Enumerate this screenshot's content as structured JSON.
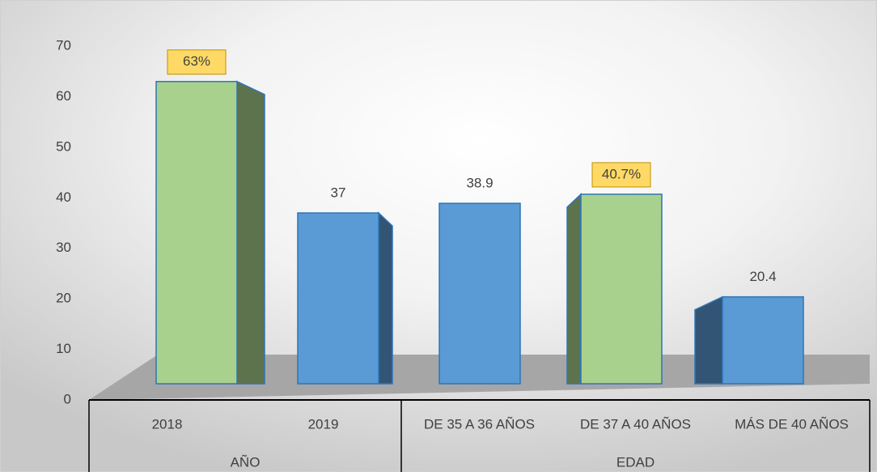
{
  "chart_data": {
    "type": "bar3d",
    "categories": [
      "2018",
      "2019",
      "DE 35 A 36 AÑOS",
      "DE 37 A 40 AÑOS",
      "MÁS DE 40 AÑOS"
    ],
    "groups": [
      {
        "name": "AÑO",
        "size": 2
      },
      {
        "name": "EDAD",
        "size": 3
      }
    ],
    "values": [
      63,
      37,
      38.9,
      40.7,
      20.4
    ],
    "value_labels": [
      "63%",
      "37",
      "38.9",
      "40.7%",
      "20.4"
    ],
    "highlight": [
      true,
      false,
      false,
      true,
      false
    ],
    "colors": [
      "#a9d18e",
      "#5b9bd5",
      "#5b9bd5",
      "#a9d18e",
      "#5b9bd5"
    ],
    "ylim": [
      0,
      70
    ],
    "yticks": [
      0,
      10,
      20,
      30,
      40,
      50,
      60,
      70
    ],
    "grid": false
  }
}
